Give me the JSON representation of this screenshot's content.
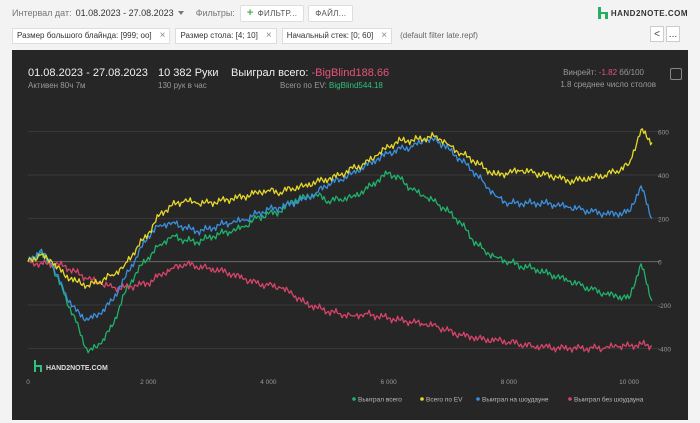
{
  "toolbar": {
    "date_label": "Интервал дат:",
    "date_range": "01.08.2023 - 27.08.2023",
    "filters_label": "Фильтры:",
    "filter_button": "ФИЛЬТР...",
    "file_button": "ФАЙЛ...",
    "logo": "HAND2NOTE.COM"
  },
  "filters": {
    "chips": [
      {
        "label": "Размер большого блайнда: [999; оо]"
      },
      {
        "label": "Размер стола: [4; 10]"
      },
      {
        "label": "Начальный стек: [0; 60]"
      }
    ],
    "default_name": "(default filter late.repf)",
    "nav": {
      "prev": "<",
      "next": "..."
    }
  },
  "summary": {
    "date_range": "01.08.2023 - 27.08.2023",
    "active": "Активен 80ч 7м",
    "hands": "10 382 Руки",
    "hands_per_hour": "130 рук в час",
    "won_label": "Выиграл всего:",
    "won_value": "-BigBlind188.66",
    "ev_label": "Всего по EV:",
    "ev_value": "BigBlind544.18",
    "winrate_label": "Винрейт:",
    "winrate_value": "-1.82",
    "winrate_unit": "бб/100",
    "avg_tables": "1.8 среднее число столов"
  },
  "colors": {
    "won": "#1fb26a",
    "ev": "#e6d829",
    "showdown": "#3a8fdf",
    "non_showdown": "#d64469",
    "background": "#262626",
    "grid": "#3a3a3a"
  },
  "chart_data": {
    "type": "line",
    "title": "",
    "xlabel": "",
    "ylabel": "",
    "xlim": [
      0,
      10382
    ],
    "ylim": [
      -500,
      700
    ],
    "x_ticks": [
      0,
      2000,
      4000,
      6000,
      8000,
      10000
    ],
    "x_tick_labels": [
      "0",
      "2 000",
      "4 000",
      "6 000",
      "8 000",
      "10 000"
    ],
    "y_ticks": [
      600,
      400,
      200,
      0,
      -200,
      -400
    ],
    "y_tick_labels": [
      "600",
      "400",
      "200",
      "0",
      "-200",
      "-400"
    ],
    "legend_position": "bottom-right",
    "watermark": "HAND2NOTE.COM",
    "x": [
      0,
      200,
      400,
      600,
      800,
      1000,
      1200,
      1400,
      1600,
      1800,
      2000,
      2200,
      2400,
      2600,
      2800,
      3000,
      3200,
      3400,
      3600,
      3800,
      4000,
      4200,
      4400,
      4600,
      4800,
      5000,
      5200,
      5400,
      5600,
      5800,
      6000,
      6200,
      6400,
      6600,
      6800,
      7000,
      7200,
      7400,
      7600,
      7800,
      8000,
      8200,
      8400,
      8600,
      8800,
      9000,
      9200,
      9400,
      9600,
      9800,
      10000,
      10200,
      10382
    ],
    "series": [
      {
        "name": "Выиграл всего",
        "color": "#1fb26a",
        "values": [
          0,
          40,
          -20,
          -150,
          -280,
          -420,
          -380,
          -300,
          -150,
          -50,
          20,
          80,
          120,
          100,
          90,
          110,
          130,
          140,
          160,
          200,
          220,
          230,
          280,
          300,
          310,
          280,
          290,
          300,
          330,
          370,
          410,
          380,
          330,
          300,
          270,
          230,
          180,
          100,
          50,
          20,
          0,
          -20,
          -30,
          -50,
          -70,
          -90,
          -110,
          -130,
          -150,
          -160,
          -170,
          -10,
          -180
        ]
      },
      {
        "name": "Всего по EV",
        "color": "#e6d829",
        "values": [
          0,
          30,
          0,
          -60,
          -90,
          -110,
          -90,
          -60,
          -20,
          60,
          130,
          220,
          260,
          280,
          270,
          270,
          280,
          290,
          300,
          320,
          330,
          320,
          340,
          350,
          370,
          380,
          400,
          430,
          450,
          490,
          530,
          560,
          560,
          570,
          580,
          540,
          500,
          470,
          430,
          400,
          410,
          420,
          410,
          400,
          390,
          370,
          380,
          390,
          400,
          420,
          450,
          610,
          550
        ]
      },
      {
        "name": "Выиграл на шоудауне",
        "color": "#3a8fdf",
        "values": [
          0,
          50,
          -10,
          -140,
          -230,
          -270,
          -240,
          -180,
          -80,
          20,
          120,
          170,
          180,
          160,
          140,
          150,
          170,
          180,
          190,
          220,
          240,
          250,
          270,
          290,
          320,
          360,
          380,
          410,
          440,
          470,
          500,
          520,
          530,
          560,
          560,
          520,
          470,
          420,
          360,
          300,
          270,
          270,
          270,
          270,
          260,
          250,
          240,
          230,
          220,
          220,
          230,
          350,
          200
        ]
      },
      {
        "name": "Выиграл без шоудауна",
        "color": "#d64469",
        "values": [
          0,
          -10,
          -10,
          -20,
          -50,
          -80,
          -100,
          -120,
          -120,
          -110,
          -100,
          -60,
          -30,
          -10,
          -20,
          -30,
          -40,
          -60,
          -80,
          -100,
          -110,
          -120,
          -150,
          -190,
          -210,
          -230,
          -240,
          -250,
          -240,
          -250,
          -260,
          -270,
          -280,
          -290,
          -300,
          -320,
          -340,
          -350,
          -360,
          -360,
          -370,
          -380,
          -390,
          -390,
          -400,
          -400,
          -400,
          -400,
          -400,
          -390,
          -390,
          -380,
          -390
        ]
      }
    ]
  }
}
